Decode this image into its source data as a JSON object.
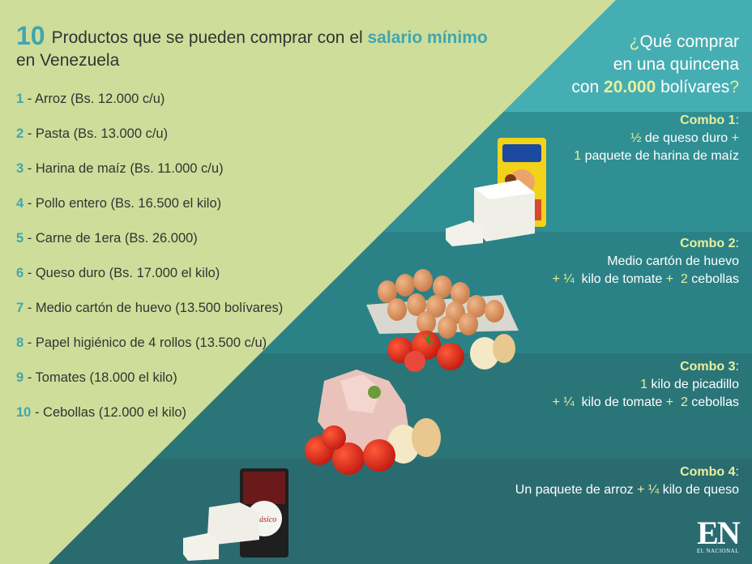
{
  "title": {
    "number": "10",
    "text_before": "Productos que se pueden comprar con el ",
    "highlight": "salario mínimo",
    "text_after": " en Venezuela"
  },
  "products": [
    {
      "num": "1",
      "text": " - Arroz (Bs. 12.000 c/u)"
    },
    {
      "num": "2",
      "text": " - Pasta (Bs. 13.000 c/u)"
    },
    {
      "num": "3",
      "text": " - Harina de maíz (Bs. 11.000 c/u)"
    },
    {
      "num": "4",
      "text": " - Pollo entero (Bs. 16.500 el kilo)"
    },
    {
      "num": "5",
      "text": " - Carne de 1era (Bs. 26.000)"
    },
    {
      "num": "6",
      "text": " - Queso duro (Bs. 17.000 el kilo)"
    },
    {
      "num": "7",
      "text": " - Medio cartón de huevo (13.500 bolívares)"
    },
    {
      "num": "8",
      "text": " - Papel higiénico de 4 rollos (13.500 c/u)"
    },
    {
      "num": "9",
      "text": " - Tomates (18.000 el kilo)"
    },
    {
      "num": "10",
      "text": " - Cebollas (12.000 el kilo)"
    }
  ],
  "question": {
    "open": "¿",
    "line1": "Qué comprar",
    "line2": "en una quincena",
    "line3_pre": "con ",
    "amount": "20.000",
    "line3_post": " bolívares",
    "close": "?"
  },
  "combos": [
    {
      "title": "Combo 1",
      "colon": ":",
      "lines": [
        [
          {
            "t": "½",
            "acc": true
          },
          {
            "t": " de queso duro "
          },
          {
            "t": "+",
            "acc": true
          }
        ],
        [
          {
            "t": "1",
            "acc": true
          },
          {
            "t": " paquete de harina de maíz"
          }
        ]
      ]
    },
    {
      "title": "Combo 2",
      "colon": ":",
      "lines": [
        [
          {
            "t": "Medio cartón de huevo"
          }
        ],
        [
          {
            "t": "+ ¼",
            "acc": true
          },
          {
            "t": "  kilo de tomate "
          },
          {
            "t": "+  2",
            "acc": true
          },
          {
            "t": " cebollas"
          }
        ]
      ]
    },
    {
      "title": "Combo 3",
      "colon": ":",
      "lines": [
        [
          {
            "t": "1",
            "acc": true
          },
          {
            "t": " kilo de picadillo"
          }
        ],
        [
          {
            "t": "+ ¼",
            "acc": true
          },
          {
            "t": "  kilo de tomate "
          },
          {
            "t": "+  2",
            "acc": true
          },
          {
            "t": " cebollas"
          }
        ]
      ]
    },
    {
      "title": "Combo 4",
      "colon": ":",
      "lines": [
        [
          {
            "t": "Un paquete de arroz "
          },
          {
            "t": "+ ¼",
            "acc": true
          },
          {
            "t": " kilo de queso"
          }
        ]
      ]
    }
  ],
  "logo": {
    "mark": "EN",
    "name": "EL NACIONAL"
  },
  "product_labels": {
    "rice_brand": "Clásico"
  },
  "colors": {
    "background_left": "#cfdd9a",
    "band_1": "#45aeb3",
    "band_2": "#2f8f93",
    "band_3": "#2b8286",
    "band_4": "#2a7578",
    "band_5": "#2a6b70",
    "accent": "#3fa6b0",
    "highlight": "#e7f09c"
  }
}
